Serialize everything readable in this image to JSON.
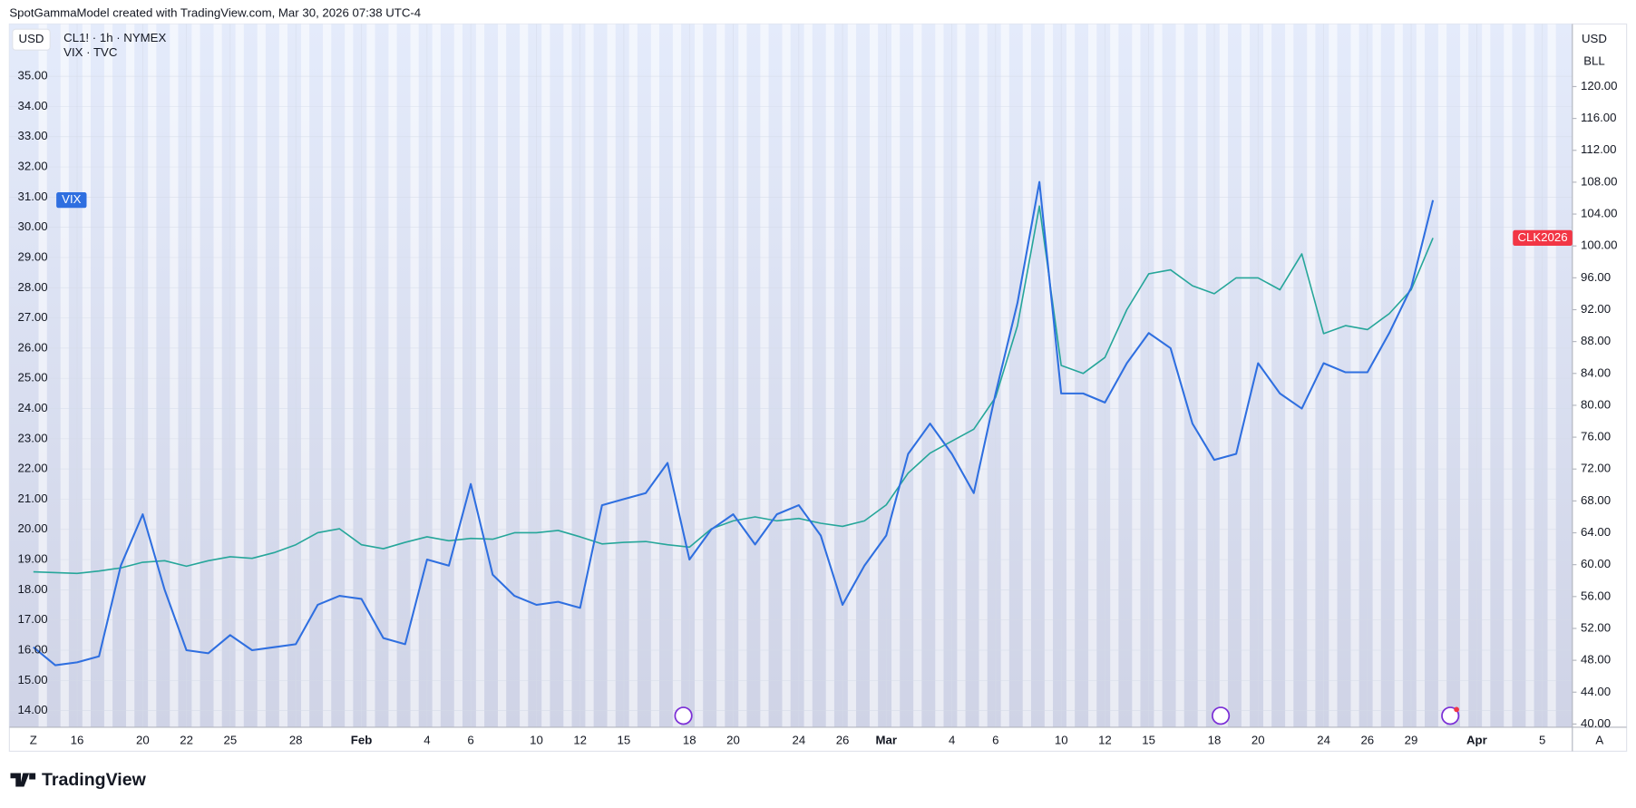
{
  "header": "SpotGammaModel created with TradingView.com, Mar 30, 2026 07:38 UTC-4",
  "footer_logo": "TradingView",
  "chart_data": {
    "type": "line",
    "left_unit": "USD",
    "right_unit": "USD",
    "right_unit_sub": "BLL",
    "zoom_button": "Z",
    "auto_button": "A",
    "categories": [
      "2026-01-14",
      "2026-01-15",
      "2026-01-16",
      "2026-01-18",
      "2026-01-19",
      "2026-01-20",
      "2026-01-21",
      "2026-01-22",
      "2026-01-23",
      "2026-01-25",
      "2026-01-26",
      "2026-01-27",
      "2026-01-28",
      "2026-01-29",
      "2026-01-30",
      "2026-02-01",
      "2026-02-02",
      "2026-02-03",
      "2026-02-04",
      "2026-02-05",
      "2026-02-06",
      "2026-02-08",
      "2026-02-09",
      "2026-02-10",
      "2026-02-11",
      "2026-02-12",
      "2026-02-13",
      "2026-02-15",
      "2026-02-16",
      "2026-02-17",
      "2026-02-18",
      "2026-02-19",
      "2026-02-20",
      "2026-02-22",
      "2026-02-23",
      "2026-02-24",
      "2026-02-25",
      "2026-02-26",
      "2026-02-27",
      "2026-03-01",
      "2026-03-02",
      "2026-03-03",
      "2026-03-04",
      "2026-03-05",
      "2026-03-06",
      "2026-03-08",
      "2026-03-09",
      "2026-03-10",
      "2026-03-11",
      "2026-03-12",
      "2026-03-13",
      "2026-03-15",
      "2026-03-16",
      "2026-03-17",
      "2026-03-18",
      "2026-03-19",
      "2026-03-20",
      "2026-03-22",
      "2026-03-23",
      "2026-03-24",
      "2026-03-25",
      "2026-03-26",
      "2026-03-27",
      "2026-03-29",
      "2026-03-30",
      "2026-03-31",
      "2026-04-01",
      "2026-04-02",
      "2026-04-03",
      "2026-04-05",
      "2026-04-06"
    ],
    "series": [
      {
        "name": "CL1! · 1h · NYMEX",
        "tag": "CLK2026",
        "tag_color": "#f23645",
        "color": "#26a69a",
        "axis": "y2",
        "values": [
          59.1,
          59.0,
          58.9,
          59.2,
          59.6,
          60.3,
          60.5,
          59.8,
          60.5,
          61.0,
          60.8,
          61.5,
          62.5,
          64.0,
          64.5,
          62.5,
          62.0,
          62.8,
          63.5,
          63.0,
          63.3,
          63.2,
          64.0,
          64.0,
          64.3,
          63.5,
          62.6,
          62.8,
          62.9,
          62.5,
          62.2,
          64.5,
          65.5,
          66.0,
          65.5,
          65.8,
          65.2,
          64.8,
          65.5,
          67.5,
          71.5,
          74.0,
          75.5,
          77.0,
          81.0,
          90.0,
          105.0,
          85.0,
          84.0,
          86.0,
          92.0,
          96.5,
          97.0,
          95.0,
          94.0,
          96.0,
          96.0,
          94.5,
          99.0,
          89.0,
          90.0,
          89.5,
          91.5,
          94.5,
          101.0,
          null,
          null,
          null,
          null,
          null,
          null
        ]
      },
      {
        "name": "VIX · TVC",
        "tag": "VIX",
        "tag_color": "#2f6fe0",
        "color": "#2f6fe0",
        "values": [
          16.1,
          15.5,
          15.6,
          15.8,
          18.8,
          20.5,
          18.0,
          16.0,
          15.9,
          16.5,
          16.0,
          16.1,
          16.2,
          17.5,
          17.8,
          17.7,
          16.4,
          16.2,
          19.0,
          18.8,
          21.5,
          18.5,
          17.8,
          17.5,
          17.6,
          17.4,
          20.8,
          21.0,
          21.2,
          22.2,
          19.0,
          20.0,
          20.5,
          19.5,
          20.5,
          20.8,
          19.8,
          17.5,
          18.8,
          19.8,
          22.5,
          23.5,
          22.5,
          21.2,
          24.5,
          27.5,
          31.5,
          24.5,
          24.5,
          24.2,
          25.5,
          26.5,
          26.0,
          23.5,
          22.3,
          22.5,
          25.5,
          24.5,
          24.0,
          25.5,
          25.2,
          25.2,
          26.5,
          28.0,
          30.9,
          null,
          null,
          null,
          null,
          null,
          null
        ]
      }
    ],
    "xticks": [
      {
        "value": "2026-01-16",
        "label": "16"
      },
      {
        "value": "2026-01-20",
        "label": "20"
      },
      {
        "value": "2026-01-22",
        "label": "22"
      },
      {
        "value": "2026-01-25",
        "label": "25"
      },
      {
        "value": "2026-01-28",
        "label": "28"
      },
      {
        "value": "2026-02-01",
        "label": "Feb"
      },
      {
        "value": "2026-02-04",
        "label": "4"
      },
      {
        "value": "2026-02-06",
        "label": "6"
      },
      {
        "value": "2026-02-10",
        "label": "10"
      },
      {
        "value": "2026-02-12",
        "label": "12"
      },
      {
        "value": "2026-02-15",
        "label": "15"
      },
      {
        "value": "2026-02-18",
        "label": "18"
      },
      {
        "value": "2026-02-20",
        "label": "20"
      },
      {
        "value": "2026-02-24",
        "label": "24"
      },
      {
        "value": "2026-02-26",
        "label": "26"
      },
      {
        "value": "2026-03-01",
        "label": "Mar"
      },
      {
        "value": "2026-03-04",
        "label": "4"
      },
      {
        "value": "2026-03-06",
        "label": "6"
      },
      {
        "value": "2026-03-10",
        "label": "10"
      },
      {
        "value": "2026-03-12",
        "label": "12"
      },
      {
        "value": "2026-03-15",
        "label": "15"
      },
      {
        "value": "2026-03-18",
        "label": "18"
      },
      {
        "value": "2026-03-20",
        "label": "20"
      },
      {
        "value": "2026-03-24",
        "label": "24"
      },
      {
        "value": "2026-03-26",
        "label": "26"
      },
      {
        "value": "2026-03-29",
        "label": "29"
      },
      {
        "value": "2026-04-01",
        "label": "Apr"
      },
      {
        "value": "2026-04-05",
        "label": "5"
      }
    ],
    "ylim": [
      13.45,
      36.73
    ],
    "yticks": [
      {
        "value": 14,
        "label": "14.00"
      },
      {
        "value": 15,
        "label": "15.00"
      },
      {
        "value": 16,
        "label": "16.00"
      },
      {
        "value": 17,
        "label": "17.00"
      },
      {
        "value": 18,
        "label": "18.00"
      },
      {
        "value": 19,
        "label": "19.00"
      },
      {
        "value": 20,
        "label": "20.00"
      },
      {
        "value": 21,
        "label": "21.00"
      },
      {
        "value": 22,
        "label": "22.00"
      },
      {
        "value": 23,
        "label": "23.00"
      },
      {
        "value": 24,
        "label": "24.00"
      },
      {
        "value": 25,
        "label": "25.00"
      },
      {
        "value": 26,
        "label": "26.00"
      },
      {
        "value": 27,
        "label": "27.00"
      },
      {
        "value": 28,
        "label": "28.00"
      },
      {
        "value": 29,
        "label": "29.00"
      },
      {
        "value": 30,
        "label": "30.00"
      },
      {
        "value": 31,
        "label": "31.00"
      },
      {
        "value": 32,
        "label": "32.00"
      },
      {
        "value": 33,
        "label": "33.00"
      },
      {
        "value": 34,
        "label": "34.00"
      },
      {
        "value": 35,
        "label": "35.00"
      }
    ],
    "y2lim": [
      39.6,
      127.85
    ],
    "y2ticks": [
      {
        "value": 40,
        "label": "40.00"
      },
      {
        "value": 44,
        "label": "44.00"
      },
      {
        "value": 48,
        "label": "48.00"
      },
      {
        "value": 52,
        "label": "52.00"
      },
      {
        "value": 56,
        "label": "56.00"
      },
      {
        "value": 60,
        "label": "60.00"
      },
      {
        "value": 64,
        "label": "64.00"
      },
      {
        "value": 68,
        "label": "68.00"
      },
      {
        "value": 72,
        "label": "72.00"
      },
      {
        "value": 76,
        "label": "76.00"
      },
      {
        "value": 80,
        "label": "80.00"
      },
      {
        "value": 84,
        "label": "84.00"
      },
      {
        "value": 88,
        "label": "88.00"
      },
      {
        "value": 92,
        "label": "92.00"
      },
      {
        "value": 96,
        "label": "96.00"
      },
      {
        "value": 100,
        "label": "100.00"
      },
      {
        "value": 104,
        "label": "104.00"
      },
      {
        "value": 108,
        "label": "108.00"
      },
      {
        "value": 112,
        "label": "112.00"
      },
      {
        "value": 116,
        "label": "116.00"
      },
      {
        "value": 120,
        "label": "120.00"
      }
    ],
    "grid": true
  }
}
